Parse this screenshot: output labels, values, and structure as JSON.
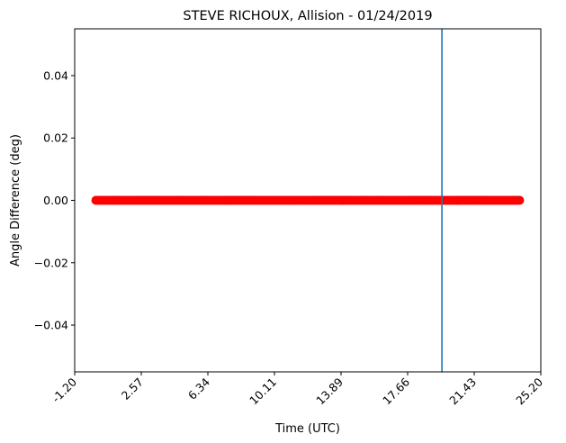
{
  "chart_data": {
    "type": "scatter",
    "title": "STEVE RICHOUX, Allision - 01/24/2019",
    "xlabel": "Time (UTC)",
    "ylabel": "Angle Difference (deg)",
    "xlim": [
      -1.2,
      25.2
    ],
    "ylim": [
      -0.055,
      0.055
    ],
    "x_ticks": [
      "-1.20",
      "2.57",
      "6.34",
      "10.11",
      "13.89",
      "17.66",
      "21.43",
      "25.20"
    ],
    "x_tick_values": [
      -1.2,
      2.571,
      6.343,
      10.114,
      13.886,
      17.657,
      21.429,
      25.2
    ],
    "y_ticks": [
      "0.04",
      "0.02",
      "0.00",
      "−0.02",
      "−0.04"
    ],
    "y_tick_values": [
      0.04,
      0.02,
      0.0,
      -0.02,
      -0.04
    ],
    "x_tick_rotation_deg": 45,
    "grid": false,
    "legend": "none",
    "series": [
      {
        "marker_color": "#ff0000",
        "x_start": 0.0,
        "x_end": 24.0,
        "x_step": 0.1,
        "y_constant": 0.0
      }
    ],
    "vertical_lines": [
      {
        "x": 19.6,
        "color": "#1f77b4"
      }
    ]
  }
}
